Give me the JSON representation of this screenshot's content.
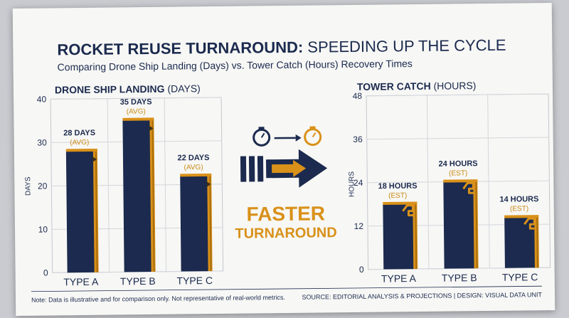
{
  "title": {
    "bold": "ROCKET REUSE TURNAROUND:",
    "rest": " SPEEDING UP THE CYCLE",
    "subtitle": "Comparing Drone Ship Landing (Days) vs. Tower Catch (Hours) Recovery Times"
  },
  "center": {
    "headline": "FASTER",
    "subline": "TURNAROUND"
  },
  "footer": {
    "note": "Note: Data is illustrative and for comparison only. Not representative of real-world metrics.",
    "source": "SOURCE: EDITORIAL ANALYSIS & PROJECTIONS  |  DESIGN: VISUAL DATA UNIT"
  },
  "colors": {
    "navy": "#1b2a4e",
    "gold": "#d9911a",
    "gold_dark": "#a86d0c"
  },
  "icons": [
    "stopwatch-icon",
    "arrow-right-icon",
    "stopwatch-icon",
    "speed-arrow-icon",
    "hook-icon"
  ],
  "chart_data": [
    {
      "type": "bar",
      "title_bold": "DRONE SHIP LANDING",
      "title_rest": " (DAYS)",
      "ylabel": "DAYS",
      "ylim": [
        0,
        40
      ],
      "yticks": [
        0,
        10,
        20,
        30,
        40
      ],
      "categories": [
        "TYPE A",
        "TYPE B",
        "TYPE C"
      ],
      "values": [
        28,
        35,
        22
      ],
      "labels": [
        "28 DAYS",
        "35 DAYS",
        "22 DAYS"
      ],
      "sublabels": [
        "(AVG)",
        "(AVG)",
        "(AVG)"
      ],
      "grid": true
    },
    {
      "type": "bar",
      "title_bold": "TOWER CATCH",
      "title_rest": " (HOURS)",
      "ylabel": "HOURS",
      "ylim": [
        0,
        48
      ],
      "yticks": [
        0,
        12,
        24,
        36,
        48
      ],
      "categories": [
        "TYPE A",
        "TYPE B",
        "TYPE C"
      ],
      "values": [
        18,
        24,
        14
      ],
      "labels": [
        "18 HOURS",
        "24 HOURS",
        "14 HOURS"
      ],
      "sublabels": [
        "(EST)",
        "(EST)",
        "(EST)"
      ],
      "grid": true
    }
  ]
}
